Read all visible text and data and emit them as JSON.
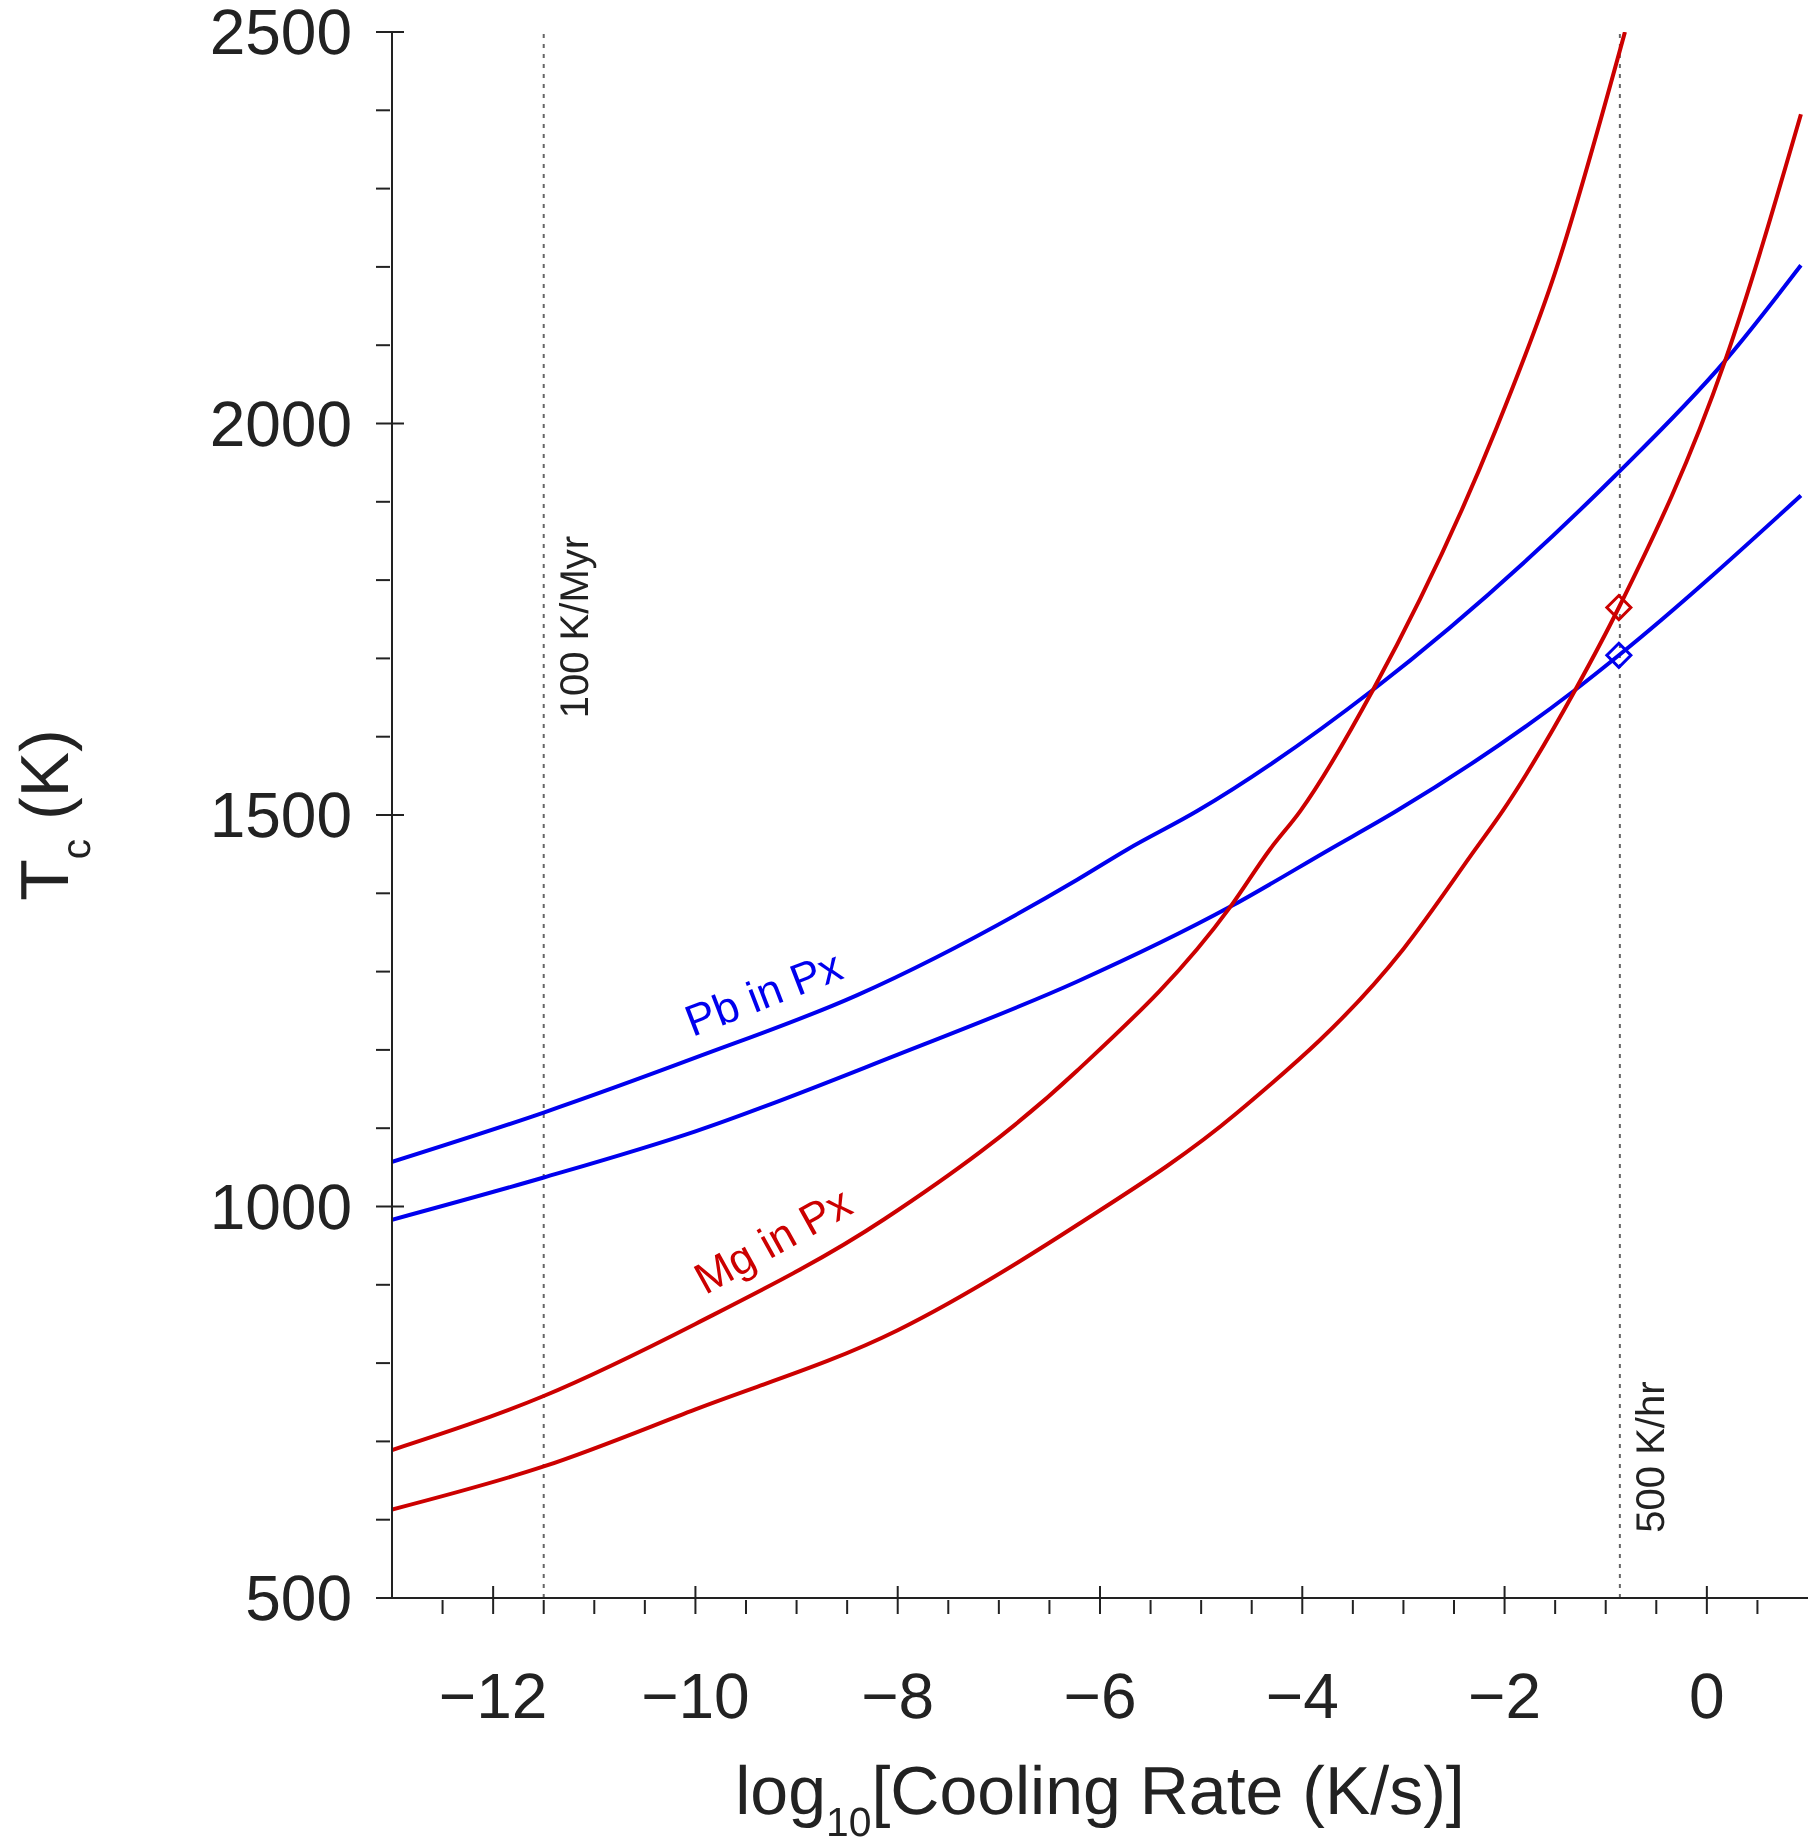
{
  "chart_data": {
    "type": "line",
    "xlabel": "log$_{10}$[Cooling Rate (K/s)]",
    "ylabel": "T$_{c}$ (K)",
    "xlim": [
      -13,
      1
    ],
    "ylim": [
      500,
      2500
    ],
    "xticks": [
      {
        "value": -12.5,
        "label": null
      },
      -12,
      {
        "value": -11.5,
        "label": null
      },
      {
        "value": -11,
        "label": null
      },
      {
        "value": -10.5,
        "label": null
      },
      -10,
      {
        "value": -9.5,
        "label": null
      },
      {
        "value": -9,
        "label": null
      },
      {
        "value": -8.5,
        "label": null
      },
      -8,
      {
        "value": -7.5,
        "label": null
      },
      {
        "value": -7,
        "label": null
      },
      {
        "value": -6.5,
        "label": null
      },
      -6,
      {
        "value": -5.5,
        "label": null
      },
      {
        "value": -5,
        "label": null
      },
      {
        "value": -4.5,
        "label": null
      },
      -4,
      {
        "value": -3.5,
        "label": null
      },
      {
        "value": -3,
        "label": null
      },
      {
        "value": -2.5,
        "label": null
      },
      -2,
      {
        "value": -1.5,
        "label": null
      },
      {
        "value": -1,
        "label": null
      },
      {
        "value": -0.5,
        "label": null
      },
      0,
      {
        "value": 0.5,
        "label": null
      }
    ],
    "yticks": [
      500,
      {
        "value": 600,
        "label": null
      },
      {
        "value": 700,
        "label": null
      },
      {
        "value": 800,
        "label": null
      },
      {
        "value": 900,
        "label": null
      },
      1000,
      {
        "value": 1100,
        "label": null
      },
      {
        "value": 1200,
        "label": null
      },
      {
        "value": 1300,
        "label": null
      },
      {
        "value": 1400,
        "label": null
      },
      1500,
      {
        "value": 1600,
        "label": null
      },
      {
        "value": 1700,
        "label": null
      },
      {
        "value": 1800,
        "label": null
      },
      {
        "value": 1900,
        "label": null
      },
      2000,
      {
        "value": 2100,
        "label": null
      },
      {
        "value": 2200,
        "label": null
      },
      {
        "value": 2300,
        "label": null
      },
      {
        "value": 2400,
        "label": null
      },
      2500
    ],
    "line_style": "solid",
    "series": [
      {
        "name": "Pb in Px",
        "color": "#0000ee",
        "x": [
          -13,
          -11.5,
          -10,
          -8.4,
          -6.23,
          -5.73,
          -5.04,
          -3.3,
          -0.91,
          0.18,
          0.93
        ],
        "values": [
          1057,
          1120,
          1190,
          1270,
          1417,
          1456,
          1505,
          1660,
          1933,
          2080,
          2202
        ]
      },
      {
        "color": "#0000ee",
        "x": [
          -13,
          -11.5,
          -10,
          -8,
          -6.23,
          -4.71,
          -3.73,
          -3.07,
          -1.3,
          -0.87,
          0.93
        ],
        "values": [
          983,
          1037,
          1096,
          1194,
          1287,
          1383,
          1456,
          1505,
          1660,
          1704,
          1908
        ]
      },
      {
        "name": "Mg in Px",
        "color": "#cc0000",
        "x": [
          -13,
          -11.5,
          -10,
          -8.13,
          -6.23,
          -4.71,
          -4.32,
          -4.02,
          -3.3,
          -2.09,
          -1.5,
          -0.81
        ],
        "values": [
          689,
          758,
          850,
          984,
          1173,
          1383,
          1456,
          1505,
          1660,
          1991,
          2193,
          2500
        ]
      },
      {
        "color": "#cc0000",
        "x": [
          -13,
          -11.5,
          -10,
          -8,
          -6.23,
          -4.65,
          -3.0,
          -2.29,
          -2.02,
          -1.3,
          -0.87,
          0.18,
          0.93
        ],
        "values": [
          613,
          668,
          741,
          842,
          976,
          1119,
          1329,
          1456,
          1505,
          1660,
          1765,
          2080,
          2395
        ]
      },
      {
        "type": "scatter",
        "marker": "diamond",
        "color": "#cc0000",
        "x": [
          -0.87
        ],
        "values": [
          1765
        ]
      },
      {
        "type": "scatter",
        "marker": "diamond",
        "color": "#0000ee",
        "x": [
          -0.87
        ],
        "values": [
          1704
        ]
      }
    ],
    "ref_lines": [
      {
        "axis": "x",
        "value": -11.5,
        "label": "100 K/Myr",
        "color": "#666666",
        "line_style": "dotted"
      },
      {
        "axis": "x",
        "value": -0.86,
        "label": "500 K/hr",
        "color": "#666666",
        "line_style": "dotted"
      }
    ]
  }
}
